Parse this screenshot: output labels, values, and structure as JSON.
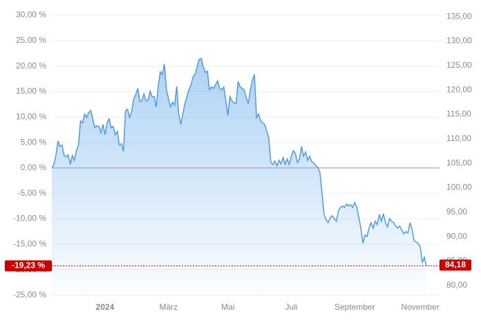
{
  "chart_data": {
    "type": "area",
    "series": [
      {
        "name": "Kursentwicklung",
        "color": "#4a9be8",
        "values": [
          0,
          0.68,
          2.45,
          5.3,
          4.21,
          4.48,
          2.45,
          2.17,
          2.58,
          0.68,
          2.45,
          1.49,
          3.4,
          4.48,
          9.24,
          8.83,
          10.6,
          9.92,
          10.87,
          11.28,
          9.65,
          7.88,
          8.29,
          8.15,
          6.93,
          8.56,
          6.52,
          8.83,
          9.65,
          7.88,
          8.15,
          6.52,
          7.2,
          4.48,
          4.76,
          3.26,
          11.28,
          11.55,
          9.92,
          11.01,
          13.59,
          14.4,
          15.63,
          13.05,
          13.18,
          14.54,
          13.18,
          13.32,
          15.08,
          14.0,
          14.0,
          11.96,
          16.04,
          18.89,
          18.35,
          20.39,
          15.36,
          13.59,
          11.96,
          12.91,
          12.37,
          16.04,
          10.6,
          8.56,
          10.6,
          12.64,
          14.0,
          15.36,
          16.31,
          17.94,
          18.35,
          19.98,
          21.34,
          21.47,
          19.84,
          18.76,
          19.03,
          15.36,
          15.9,
          15.63,
          16.31,
          17.12,
          15.63,
          15.36,
          15.9,
          13.32,
          10.33,
          14.0,
          13.18,
          12.77,
          12.64,
          16.99,
          15.9,
          15.63,
          15.36,
          13.73,
          12.64,
          15.36,
          17.26,
          18.35,
          9.92,
          10.6,
          9.24,
          8.83,
          8.56,
          7.2,
          5.84,
          1.09,
          0.68,
          1.36,
          0.41,
          1.49,
          0.82,
          2.04,
          0.68,
          1.77,
          0.68,
          2.31,
          3.4,
          2.85,
          1.09,
          1.77,
          4.21,
          2.31,
          3.13,
          1.49,
          2.31,
          1.22,
          0.95,
          0.41,
          0.14,
          -0.95,
          -5.03,
          -9.11,
          -10.19,
          -10.74,
          -9.78,
          -9.38,
          -9.92,
          -10.46,
          -8.43,
          -7.75,
          -7.47,
          -7.75,
          -7.07,
          -7.47,
          -7.2,
          -7.75,
          -6.8,
          -7.75,
          -9.78,
          -11.82,
          -14.81,
          -13.18,
          -13.45,
          -11.82,
          -10.74,
          -11.82,
          -10.46,
          -11.14,
          -9.11,
          -10.46,
          -8.97,
          -10.74,
          -11.55,
          -9.92,
          -10.46,
          -10.74,
          -11.42,
          -11.82,
          -11.42,
          -12.23,
          -12.91,
          -12.5,
          -12.77,
          -10.74,
          -12.1,
          -14.27,
          -14.54,
          -14.81,
          -15.49,
          -18.62,
          -17.53,
          -19.23
        ]
      }
    ],
    "xlim": [
      0,
      183
    ],
    "xticks": [
      {
        "value": 26,
        "label": "2024"
      },
      {
        "value": 57,
        "label": "März"
      },
      {
        "value": 86,
        "label": "Mai"
      },
      {
        "value": 117,
        "label": "Juli"
      },
      {
        "value": 148,
        "label": "September"
      },
      {
        "value": 180,
        "label": "November"
      }
    ],
    "ylim": [
      -25,
      30
    ],
    "yticks": [
      {
        "value": 30,
        "label": "30,00 %"
      },
      {
        "value": 25,
        "label": "25,00 %"
      },
      {
        "value": 20,
        "label": "20,00 %"
      },
      {
        "value": 15,
        "label": "15,00 %"
      },
      {
        "value": 10,
        "label": "10,00 %"
      },
      {
        "value": 5,
        "label": "5,00 %"
      },
      {
        "value": 0,
        "label": "0,00 %"
      },
      {
        "value": -5,
        "label": "-5,00 %"
      },
      {
        "value": -10,
        "label": "-10,00 %"
      },
      {
        "value": -15,
        "label": "-15,00 %"
      },
      {
        "value": -20,
        "label": "-20,00 %"
      },
      {
        "value": -25,
        "label": "-25,00 %"
      }
    ],
    "y2lim": [
      78.0,
      135.3
    ],
    "y2ticks": [
      {
        "value": 135,
        "label": "135,00"
      },
      {
        "value": 130,
        "label": "130,00"
      },
      {
        "value": 125,
        "label": "125,00"
      },
      {
        "value": 120,
        "label": "120,00"
      },
      {
        "value": 115,
        "label": "115,00"
      },
      {
        "value": 110,
        "label": "110,00"
      },
      {
        "value": 105,
        "label": "105,00"
      },
      {
        "value": 100,
        "label": "100,00"
      },
      {
        "value": 95,
        "label": "95,00"
      },
      {
        "value": 90,
        "label": "90,00"
      },
      {
        "value": 85,
        "label": "85,00"
      },
      {
        "value": 80,
        "label": "80,00"
      }
    ],
    "grid": true,
    "reference_line": 0,
    "current": {
      "value": -19.23,
      "label": "-19,23 %"
    },
    "current_price": {
      "value": 84.18,
      "label": "84,18",
      "axis": "y2"
    },
    "marker_color": "#cc0000"
  }
}
